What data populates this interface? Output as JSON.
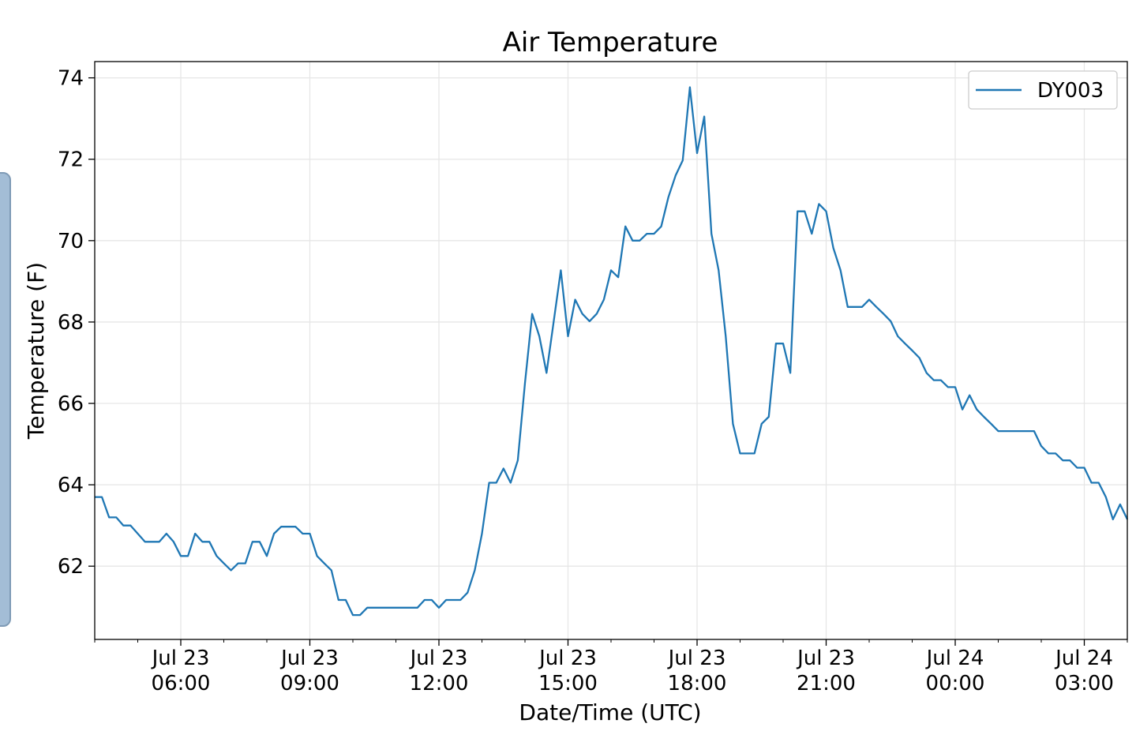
{
  "chart_data": {
    "type": "line",
    "title": "Air Temperature",
    "xlabel": "Date/Time (UTC)",
    "ylabel": "Temperature (F)",
    "x_range": [
      "2023-07-23T04:00",
      "2023-07-24T04:00"
    ],
    "ylim": [
      60.2,
      74.4
    ],
    "y_ticks": [
      62,
      64,
      66,
      68,
      70,
      72,
      74
    ],
    "x_ticks": [
      {
        "t": "2023-07-23T06:00",
        "line1": "Jul 23",
        "line2": "06:00"
      },
      {
        "t": "2023-07-23T09:00",
        "line1": "Jul 23",
        "line2": "09:00"
      },
      {
        "t": "2023-07-23T12:00",
        "line1": "Jul 23",
        "line2": "12:00"
      },
      {
        "t": "2023-07-23T15:00",
        "line1": "Jul 23",
        "line2": "15:00"
      },
      {
        "t": "2023-07-23T18:00",
        "line1": "Jul 23",
        "line2": "18:00"
      },
      {
        "t": "2023-07-23T21:00",
        "line1": "Jul 23",
        "line2": "21:00"
      },
      {
        "t": "2023-07-24T00:00",
        "line1": "Jul 24",
        "line2": "00:00"
      },
      {
        "t": "2023-07-24T03:00",
        "line1": "Jul 24",
        "line2": "03:00"
      }
    ],
    "grid": true,
    "legend": "top-right",
    "series": [
      {
        "name": "DY003",
        "color": "#1f77b4",
        "points": [
          [
            "2023-07-23T04:00",
            63.7
          ],
          [
            "2023-07-23T04:10",
            63.7
          ],
          [
            "2023-07-23T04:20",
            63.2
          ],
          [
            "2023-07-23T04:30",
            63.2
          ],
          [
            "2023-07-23T04:40",
            63.0
          ],
          [
            "2023-07-23T04:50",
            63.0
          ],
          [
            "2023-07-23T05:00",
            62.8
          ],
          [
            "2023-07-23T05:10",
            62.6
          ],
          [
            "2023-07-23T05:20",
            62.6
          ],
          [
            "2023-07-23T05:30",
            62.6
          ],
          [
            "2023-07-23T05:40",
            62.8
          ],
          [
            "2023-07-23T05:50",
            62.6
          ],
          [
            "2023-07-23T06:00",
            62.25
          ],
          [
            "2023-07-23T06:10",
            62.25
          ],
          [
            "2023-07-23T06:20",
            62.8
          ],
          [
            "2023-07-23T06:30",
            62.6
          ],
          [
            "2023-07-23T06:40",
            62.6
          ],
          [
            "2023-07-23T06:50",
            62.25
          ],
          [
            "2023-07-23T07:00",
            62.07
          ],
          [
            "2023-07-23T07:10",
            61.9
          ],
          [
            "2023-07-23T07:20",
            62.07
          ],
          [
            "2023-07-23T07:30",
            62.07
          ],
          [
            "2023-07-23T07:40",
            62.6
          ],
          [
            "2023-07-23T07:50",
            62.6
          ],
          [
            "2023-07-23T08:00",
            62.25
          ],
          [
            "2023-07-23T08:10",
            62.8
          ],
          [
            "2023-07-23T08:20",
            62.97
          ],
          [
            "2023-07-23T08:30",
            62.97
          ],
          [
            "2023-07-23T08:40",
            62.97
          ],
          [
            "2023-07-23T08:50",
            62.8
          ],
          [
            "2023-07-23T09:00",
            62.8
          ],
          [
            "2023-07-23T09:10",
            62.25
          ],
          [
            "2023-07-23T09:20",
            62.07
          ],
          [
            "2023-07-23T09:30",
            61.9
          ],
          [
            "2023-07-23T09:40",
            61.17
          ],
          [
            "2023-07-23T09:50",
            61.17
          ],
          [
            "2023-07-23T10:00",
            60.8
          ],
          [
            "2023-07-23T10:10",
            60.8
          ],
          [
            "2023-07-23T10:20",
            60.98
          ],
          [
            "2023-07-23T10:30",
            60.98
          ],
          [
            "2023-07-23T10:40",
            60.98
          ],
          [
            "2023-07-23T10:50",
            60.98
          ],
          [
            "2023-07-23T11:00",
            60.98
          ],
          [
            "2023-07-23T11:10",
            60.98
          ],
          [
            "2023-07-23T11:20",
            60.98
          ],
          [
            "2023-07-23T11:30",
            60.98
          ],
          [
            "2023-07-23T11:40",
            61.17
          ],
          [
            "2023-07-23T11:50",
            61.17
          ],
          [
            "2023-07-23T12:00",
            60.98
          ],
          [
            "2023-07-23T12:10",
            61.17
          ],
          [
            "2023-07-23T12:20",
            61.17
          ],
          [
            "2023-07-23T12:30",
            61.17
          ],
          [
            "2023-07-23T12:40",
            61.35
          ],
          [
            "2023-07-23T12:50",
            61.9
          ],
          [
            "2023-07-23T13:00",
            62.8
          ],
          [
            "2023-07-23T13:10",
            64.05
          ],
          [
            "2023-07-23T13:20",
            64.05
          ],
          [
            "2023-07-23T13:30",
            64.4
          ],
          [
            "2023-07-23T13:40",
            64.05
          ],
          [
            "2023-07-23T13:50",
            64.6
          ],
          [
            "2023-07-23T14:00",
            66.5
          ],
          [
            "2023-07-23T14:10",
            68.2
          ],
          [
            "2023-07-23T14:20",
            67.65
          ],
          [
            "2023-07-23T14:30",
            66.75
          ],
          [
            "2023-07-23T14:40",
            68.0
          ],
          [
            "2023-07-23T14:50",
            69.27
          ],
          [
            "2023-07-23T15:00",
            67.65
          ],
          [
            "2023-07-23T15:10",
            68.55
          ],
          [
            "2023-07-23T15:20",
            68.2
          ],
          [
            "2023-07-23T15:30",
            68.02
          ],
          [
            "2023-07-23T15:40",
            68.2
          ],
          [
            "2023-07-23T15:50",
            68.55
          ],
          [
            "2023-07-23T16:00",
            69.27
          ],
          [
            "2023-07-23T16:10",
            69.1
          ],
          [
            "2023-07-23T16:20",
            70.35
          ],
          [
            "2023-07-23T16:30",
            70.0
          ],
          [
            "2023-07-23T16:40",
            70.0
          ],
          [
            "2023-07-23T16:50",
            70.17
          ],
          [
            "2023-07-23T17:00",
            70.17
          ],
          [
            "2023-07-23T17:10",
            70.35
          ],
          [
            "2023-07-23T17:20",
            71.07
          ],
          [
            "2023-07-23T17:30",
            71.6
          ],
          [
            "2023-07-23T17:40",
            71.97
          ],
          [
            "2023-07-23T17:50",
            73.77
          ],
          [
            "2023-07-23T18:00",
            72.15
          ],
          [
            "2023-07-23T18:10",
            73.05
          ],
          [
            "2023-07-23T18:20",
            70.17
          ],
          [
            "2023-07-23T18:30",
            69.27
          ],
          [
            "2023-07-23T18:40",
            67.65
          ],
          [
            "2023-07-23T18:50",
            65.5
          ],
          [
            "2023-07-23T19:00",
            64.77
          ],
          [
            "2023-07-23T19:10",
            64.77
          ],
          [
            "2023-07-23T19:20",
            64.77
          ],
          [
            "2023-07-23T19:30",
            65.5
          ],
          [
            "2023-07-23T19:40",
            65.67
          ],
          [
            "2023-07-23T19:50",
            67.47
          ],
          [
            "2023-07-23T20:00",
            67.47
          ],
          [
            "2023-07-23T20:10",
            66.75
          ],
          [
            "2023-07-23T20:20",
            70.72
          ],
          [
            "2023-07-23T20:30",
            70.72
          ],
          [
            "2023-07-23T20:40",
            70.17
          ],
          [
            "2023-07-23T20:50",
            70.9
          ],
          [
            "2023-07-23T21:00",
            70.72
          ],
          [
            "2023-07-23T21:10",
            69.82
          ],
          [
            "2023-07-23T21:20",
            69.27
          ],
          [
            "2023-07-23T21:30",
            68.37
          ],
          [
            "2023-07-23T21:40",
            68.37
          ],
          [
            "2023-07-23T21:50",
            68.37
          ],
          [
            "2023-07-23T22:00",
            68.55
          ],
          [
            "2023-07-23T22:10",
            68.37
          ],
          [
            "2023-07-23T22:20",
            68.2
          ],
          [
            "2023-07-23T22:30",
            68.02
          ],
          [
            "2023-07-23T22:40",
            67.65
          ],
          [
            "2023-07-23T22:50",
            67.47
          ],
          [
            "2023-07-23T23:00",
            67.3
          ],
          [
            "2023-07-23T23:10",
            67.12
          ],
          [
            "2023-07-23T23:20",
            66.75
          ],
          [
            "2023-07-23T23:30",
            66.57
          ],
          [
            "2023-07-23T23:40",
            66.57
          ],
          [
            "2023-07-23T23:50",
            66.4
          ],
          [
            "2023-07-24T00:00",
            66.4
          ],
          [
            "2023-07-24T00:10",
            65.85
          ],
          [
            "2023-07-24T00:20",
            66.2
          ],
          [
            "2023-07-24T00:30",
            65.85
          ],
          [
            "2023-07-24T00:40",
            65.67
          ],
          [
            "2023-07-24T00:50",
            65.5
          ],
          [
            "2023-07-24T01:00",
            65.32
          ],
          [
            "2023-07-24T01:10",
            65.32
          ],
          [
            "2023-07-24T01:20",
            65.32
          ],
          [
            "2023-07-24T01:30",
            65.32
          ],
          [
            "2023-07-24T01:40",
            65.32
          ],
          [
            "2023-07-24T01:50",
            65.32
          ],
          [
            "2023-07-24T02:00",
            64.95
          ],
          [
            "2023-07-24T02:10",
            64.77
          ],
          [
            "2023-07-24T02:20",
            64.77
          ],
          [
            "2023-07-24T02:30",
            64.6
          ],
          [
            "2023-07-24T02:40",
            64.6
          ],
          [
            "2023-07-24T02:50",
            64.42
          ],
          [
            "2023-07-24T03:00",
            64.42
          ],
          [
            "2023-07-24T03:10",
            64.05
          ],
          [
            "2023-07-24T03:20",
            64.05
          ],
          [
            "2023-07-24T03:30",
            63.7
          ],
          [
            "2023-07-24T03:40",
            63.15
          ],
          [
            "2023-07-24T03:50",
            63.52
          ],
          [
            "2023-07-24T04:00",
            63.15
          ]
        ]
      }
    ]
  }
}
